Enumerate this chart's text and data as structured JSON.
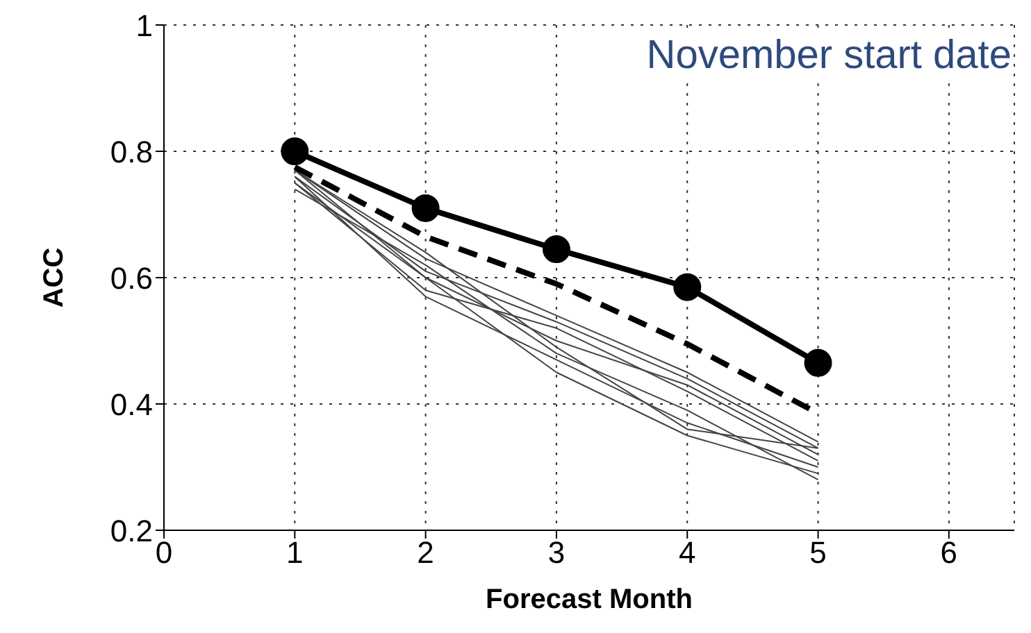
{
  "chart_data": {
    "type": "line",
    "xlabel": "Forecast Month",
    "ylabel": "ACC",
    "annotations": [
      "November start date"
    ],
    "x": [
      1,
      2,
      3,
      4,
      5
    ],
    "xlim": [
      0,
      6.5
    ],
    "xticks": [
      0,
      1,
      2,
      3,
      4,
      5,
      6
    ],
    "ylim": [
      0.2,
      1
    ],
    "yticks": [
      0.2,
      0.4,
      0.6,
      0.8,
      1
    ],
    "grid": true,
    "series": [
      {
        "color": "#444444",
        "values": [
          0.77,
          0.63,
          0.54,
          0.45,
          0.34
        ],
        "marker": "none",
        "line_style": "solid"
      },
      {
        "color": "#444444",
        "values": [
          0.76,
          0.61,
          0.53,
          0.44,
          0.33
        ],
        "marker": "none",
        "line_style": "solid"
      },
      {
        "color": "#444444",
        "values": [
          0.77,
          0.6,
          0.5,
          0.43,
          0.32
        ],
        "marker": "none",
        "line_style": "solid"
      },
      {
        "color": "#444444",
        "values": [
          0.75,
          0.58,
          0.52,
          0.42,
          0.31
        ],
        "marker": "none",
        "line_style": "solid"
      },
      {
        "color": "#444444",
        "values": [
          0.76,
          0.57,
          0.47,
          0.37,
          0.3
        ],
        "marker": "none",
        "line_style": "solid"
      },
      {
        "color": "#444444",
        "values": [
          0.77,
          0.64,
          0.49,
          0.36,
          0.33
        ],
        "marker": "none",
        "line_style": "solid"
      },
      {
        "color": "#444444",
        "values": [
          0.75,
          0.6,
          0.45,
          0.35,
          0.29
        ],
        "marker": "none",
        "line_style": "solid"
      },
      {
        "color": "#444444",
        "values": [
          0.74,
          0.62,
          0.48,
          0.39,
          0.28
        ],
        "marker": "none",
        "line_style": "solid"
      },
      {
        "color": "#000000",
        "values": [
          0.775,
          0.665,
          0.59,
          0.495,
          0.385
        ],
        "marker": "none",
        "line_style": "dashed"
      },
      {
        "color": "#000000",
        "values": [
          0.8,
          0.71,
          0.645,
          0.585,
          0.465
        ],
        "marker": "circle",
        "line_style": "solid"
      }
    ]
  }
}
